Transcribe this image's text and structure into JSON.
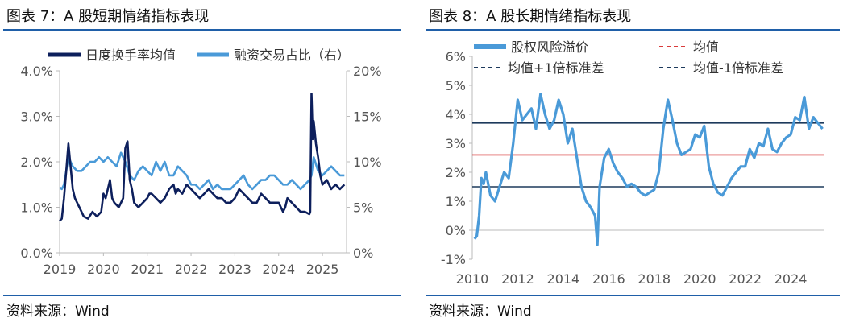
{
  "charts": [
    {
      "title": "图表 7：A 股短期情绪指标表现",
      "source": "资料来源：Wind",
      "chart_data": {
        "type": "line",
        "title": "图表 7：A 股短期情绪指标表现",
        "xlabel": "",
        "ylabel": "",
        "x_ticks": [
          "2019",
          "2020",
          "2021",
          "2022",
          "2023",
          "2024",
          "2025"
        ],
        "xlim": [
          2019.0,
          2025.55
        ],
        "y_left_ticks": [
          "0.0%",
          "1.0%",
          "2.0%",
          "3.0%",
          "4.0%"
        ],
        "ylim_left": [
          0,
          4
        ],
        "y_right_ticks": [
          "0%",
          "5%",
          "10%",
          "15%",
          "20%"
        ],
        "ylim_right": [
          0,
          20
        ],
        "legend_position": "top",
        "grid": false,
        "series": [
          {
            "name": "日度换手率均值",
            "axis": "left",
            "unit": "%",
            "color": "#0d1f5c",
            "x": [
              2019.0,
              2019.05,
              2019.1,
              2019.15,
              2019.2,
              2019.25,
              2019.3,
              2019.35,
              2019.45,
              2019.55,
              2019.65,
              2019.75,
              2019.85,
              2019.95,
              2020.0,
              2020.05,
              2020.1,
              2020.15,
              2020.2,
              2020.25,
              2020.35,
              2020.45,
              2020.5,
              2020.55,
              2020.6,
              2020.65,
              2020.7,
              2020.8,
              2020.9,
              2021.0,
              2021.05,
              2021.1,
              2021.2,
              2021.3,
              2021.4,
              2021.5,
              2021.6,
              2021.65,
              2021.7,
              2021.8,
              2021.9,
              2022.0,
              2022.1,
              2022.2,
              2022.3,
              2022.4,
              2022.5,
              2022.6,
              2022.7,
              2022.8,
              2022.9,
              2023.0,
              2023.1,
              2023.2,
              2023.3,
              2023.4,
              2023.5,
              2023.6,
              2023.7,
              2023.8,
              2023.9,
              2024.0,
              2024.1,
              2024.15,
              2024.2,
              2024.3,
              2024.4,
              2024.5,
              2024.6,
              2024.7,
              2024.72,
              2024.75,
              2024.78,
              2024.8,
              2024.85,
              2024.9,
              2024.95,
              2025.0,
              2025.1,
              2025.2,
              2025.3,
              2025.4,
              2025.5
            ],
            "values": [
              0.7,
              0.75,
              1.2,
              1.8,
              2.4,
              1.9,
              1.4,
              1.2,
              1.0,
              0.8,
              0.75,
              0.9,
              0.8,
              0.9,
              1.3,
              1.2,
              1.4,
              1.6,
              1.2,
              1.1,
              1.0,
              1.2,
              2.3,
              2.45,
              1.6,
              1.4,
              1.1,
              1.0,
              1.1,
              1.2,
              1.3,
              1.3,
              1.2,
              1.1,
              1.2,
              1.4,
              1.5,
              1.3,
              1.4,
              1.3,
              1.5,
              1.4,
              1.3,
              1.2,
              1.3,
              1.4,
              1.3,
              1.2,
              1.2,
              1.1,
              1.1,
              1.2,
              1.4,
              1.3,
              1.2,
              1.1,
              1.1,
              1.3,
              1.2,
              1.1,
              1.1,
              1.1,
              0.9,
              1.0,
              1.2,
              1.1,
              1.0,
              0.9,
              0.9,
              0.85,
              0.9,
              3.5,
              2.5,
              2.9,
              2.4,
              2.1,
              1.7,
              1.5,
              1.6,
              1.4,
              1.5,
              1.4,
              1.5
            ]
          },
          {
            "name": "融资交易占比（右）",
            "axis": "right",
            "unit": "%",
            "color": "#4a9ad8",
            "x": [
              2019.0,
              2019.05,
              2019.1,
              2019.15,
              2019.2,
              2019.3,
              2019.4,
              2019.5,
              2019.6,
              2019.7,
              2019.8,
              2019.9,
              2020.0,
              2020.1,
              2020.2,
              2020.3,
              2020.4,
              2020.5,
              2020.6,
              2020.7,
              2020.8,
              2020.9,
              2021.0,
              2021.1,
              2021.2,
              2021.3,
              2021.4,
              2021.5,
              2021.6,
              2021.7,
              2021.8,
              2021.9,
              2022.0,
              2022.1,
              2022.2,
              2022.3,
              2022.4,
              2022.5,
              2022.6,
              2022.7,
              2022.8,
              2022.9,
              2023.0,
              2023.1,
              2023.2,
              2023.3,
              2023.4,
              2023.5,
              2023.6,
              2023.7,
              2023.8,
              2023.9,
              2024.0,
              2024.1,
              2024.2,
              2024.3,
              2024.4,
              2024.5,
              2024.6,
              2024.7,
              2024.75,
              2024.8,
              2024.9,
              2025.0,
              2025.1,
              2025.2,
              2025.3,
              2025.4,
              2025.5
            ],
            "values": [
              7.2,
              7.0,
              7.5,
              9.0,
              10.5,
              9.5,
              9.0,
              9.0,
              9.5,
              10.0,
              10.0,
              10.5,
              10.0,
              10.5,
              10.0,
              9.5,
              11.0,
              10.0,
              8.5,
              8.0,
              9.0,
              9.5,
              9.0,
              8.5,
              10.0,
              9.0,
              10.0,
              8.5,
              8.5,
              9.5,
              9.0,
              8.5,
              7.5,
              7.5,
              7.0,
              7.5,
              8.0,
              7.0,
              7.5,
              7.0,
              7.0,
              7.0,
              7.5,
              8.0,
              8.5,
              7.5,
              7.0,
              7.5,
              8.0,
              8.0,
              8.5,
              8.5,
              8.0,
              7.5,
              7.5,
              8.0,
              7.5,
              7.0,
              7.5,
              8.0,
              8.5,
              10.5,
              9.0,
              8.5,
              9.0,
              9.5,
              9.0,
              8.5,
              8.5
            ]
          }
        ]
      }
    },
    {
      "title": "图表 8：A 股长期情绪指标表现",
      "source": "资料来源：Wind",
      "chart_data": {
        "type": "line",
        "title": "图表 8：A 股长期情绪指标表现",
        "xlabel": "",
        "ylabel": "",
        "x_ticks": [
          "2010",
          "2012",
          "2014",
          "2016",
          "2018",
          "2020",
          "2022",
          "2024"
        ],
        "xlim": [
          2010.0,
          2025.45
        ],
        "y_ticks": [
          "-1%",
          "0%",
          "1%",
          "2%",
          "3%",
          "4%",
          "5%",
          "6%"
        ],
        "ylim": [
          -1,
          6
        ],
        "legend_position": "top",
        "grid": false,
        "series": [
          {
            "name": "股权风险溢价",
            "unit": "%",
            "color": "#4a9ad8",
            "x": [
              2010.1,
              2010.2,
              2010.3,
              2010.4,
              2010.5,
              2010.6,
              2010.8,
              2011.0,
              2011.2,
              2011.4,
              2011.6,
              2011.8,
              2012.0,
              2012.2,
              2012.4,
              2012.6,
              2012.8,
              2013.0,
              2013.2,
              2013.4,
              2013.6,
              2013.8,
              2014.0,
              2014.2,
              2014.4,
              2014.6,
              2014.8,
              2015.0,
              2015.2,
              2015.4,
              2015.5,
              2015.6,
              2015.8,
              2016.0,
              2016.2,
              2016.4,
              2016.6,
              2016.8,
              2017.0,
              2017.2,
              2017.4,
              2017.6,
              2017.8,
              2018.0,
              2018.2,
              2018.4,
              2018.6,
              2018.8,
              2019.0,
              2019.2,
              2019.4,
              2019.6,
              2019.8,
              2020.0,
              2020.2,
              2020.4,
              2020.6,
              2020.8,
              2021.0,
              2021.2,
              2021.4,
              2021.6,
              2021.8,
              2022.0,
              2022.2,
              2022.4,
              2022.6,
              2022.8,
              2023.0,
              2023.2,
              2023.4,
              2023.6,
              2023.8,
              2024.0,
              2024.2,
              2024.4,
              2024.6,
              2024.8,
              2025.0,
              2025.2,
              2025.4
            ],
            "values": [
              -0.3,
              -0.2,
              0.5,
              1.8,
              1.6,
              2.0,
              1.2,
              1.0,
              1.5,
              2.0,
              1.8,
              3.0,
              4.5,
              3.8,
              4.0,
              4.2,
              3.5,
              4.7,
              4.0,
              3.5,
              3.8,
              4.5,
              4.0,
              3.0,
              3.5,
              2.5,
              1.5,
              1.0,
              0.8,
              0.5,
              -0.5,
              1.5,
              2.5,
              2.8,
              2.3,
              2.0,
              1.8,
              1.5,
              1.6,
              1.5,
              1.3,
              1.2,
              1.3,
              1.4,
              2.0,
              3.5,
              4.5,
              3.8,
              3.0,
              2.6,
              2.7,
              2.8,
              3.3,
              3.2,
              3.6,
              2.2,
              1.6,
              1.3,
              1.2,
              1.5,
              1.8,
              2.0,
              2.2,
              2.2,
              2.8,
              2.5,
              3.0,
              2.9,
              3.5,
              2.8,
              2.7,
              3.0,
              3.2,
              3.3,
              3.9,
              3.8,
              4.6,
              3.5,
              3.9,
              3.7,
              3.5
            ]
          },
          {
            "name": "均值",
            "value": 2.6,
            "color": "#d93b3b"
          },
          {
            "name": "均值+1倍标准差",
            "value": 3.7,
            "color": "#1d3a5c"
          },
          {
            "name": "均值-1倍标准差",
            "value": 1.5,
            "color": "#1d3a5c"
          }
        ]
      }
    }
  ]
}
